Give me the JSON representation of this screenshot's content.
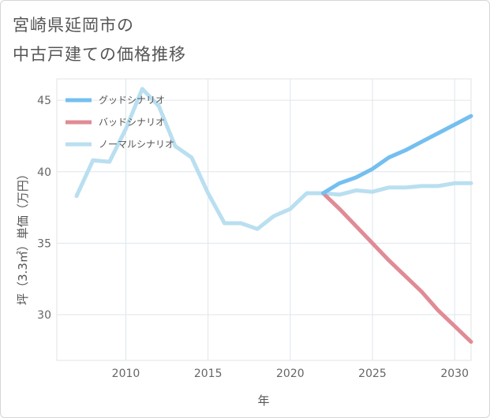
{
  "page": {
    "title_line1": "宮崎県延岡市の",
    "title_line2": "中古戸建ての価格推移"
  },
  "chart_data": {
    "type": "line",
    "title": "宮崎県延岡市の中古戸建ての価格推移",
    "xlabel": "年",
    "ylabel": "坪（3.3㎡）単価（万円）",
    "xlim": [
      2005.8,
      2031
    ],
    "ylim": [
      26.8,
      46.5
    ],
    "xticks": [
      2010,
      2015,
      2020,
      2025,
      2030
    ],
    "yticks": [
      30,
      35,
      40,
      45
    ],
    "grid": true,
    "legend_position": "top-left",
    "series": [
      {
        "name": "グッドシナリオ",
        "color": "#74bff0",
        "x": [
          2022,
          2023,
          2024,
          2025,
          2026,
          2027,
          2028,
          2029,
          2030,
          2031
        ],
        "y": [
          38.5,
          39.2,
          39.6,
          40.2,
          41.0,
          41.5,
          42.1,
          42.7,
          43.3,
          43.9
        ]
      },
      {
        "name": "バッドシナリオ",
        "color": "#e08b95",
        "x": [
          2022,
          2023,
          2024,
          2025,
          2026,
          2027,
          2028,
          2029,
          2030,
          2031
        ],
        "y": [
          38.5,
          37.4,
          36.2,
          35.0,
          33.8,
          32.7,
          31.6,
          30.3,
          29.2,
          28.1
        ]
      },
      {
        "name": "ノーマルシナリオ",
        "color": "#b9dff0",
        "x": [
          2007,
          2008,
          2009,
          2010,
          2011,
          2012,
          2013,
          2014,
          2015,
          2016,
          2017,
          2018,
          2019,
          2020,
          2021,
          2022,
          2023,
          2024,
          2025,
          2026,
          2027,
          2028,
          2029,
          2030,
          2031
        ],
        "y": [
          38.3,
          40.8,
          40.7,
          43.0,
          45.8,
          44.6,
          41.8,
          41.0,
          38.5,
          36.4,
          36.4,
          36.0,
          36.9,
          37.4,
          38.5,
          38.5,
          38.4,
          38.7,
          38.6,
          38.9,
          38.9,
          39.0,
          39.0,
          39.2,
          39.2
        ]
      }
    ]
  }
}
